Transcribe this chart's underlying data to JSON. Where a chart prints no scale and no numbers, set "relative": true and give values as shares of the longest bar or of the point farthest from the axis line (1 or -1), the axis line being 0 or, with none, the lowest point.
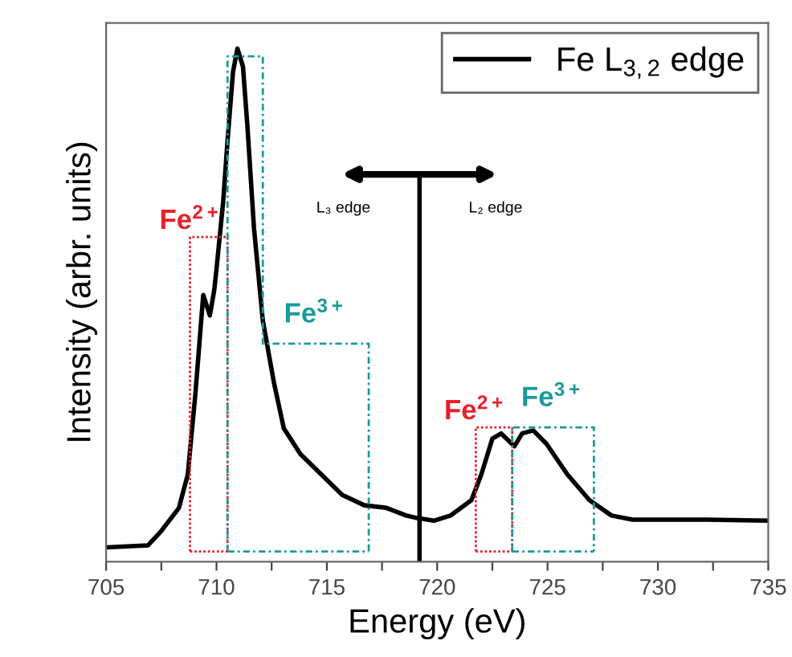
{
  "chart_data": {
    "type": "line",
    "relative": true,
    "xlabel": "Energy (eV)",
    "ylabel": "Intensity (arbr. units)",
    "xlim": [
      705,
      735
    ],
    "xticks": [
      705,
      {
        "value": 707.5,
        "label": null
      },
      710,
      {
        "value": 712.5,
        "label": null
      },
      715,
      {
        "value": 717.5,
        "label": null
      },
      720,
      {
        "value": 722.5,
        "label": null
      },
      725,
      {
        "value": 727.5,
        "label": null
      },
      730,
      {
        "value": 732.5,
        "label": null
      },
      735
    ],
    "grid": false,
    "legend": "top right",
    "line_style": "solid",
    "marker": "none",
    "series": [
      {
        "name": "Fe L$_{3,2}$ edge",
        "color": "#000000",
        "x": [
          705.05,
          706.9,
          707.5,
          708.3,
          708.7,
          709.05,
          709.4,
          709.7,
          709.9,
          710.0,
          710.3,
          710.5,
          710.75,
          710.95,
          711.2,
          711.4,
          711.7,
          712.1,
          712.6,
          713.05,
          713.8,
          714.75,
          715.7,
          716.7,
          717.7,
          718.6,
          719.1,
          719.85,
          720.6,
          721.55,
          722.0,
          722.5,
          722.9,
          723.5,
          723.85,
          724.35,
          724.95,
          725.9,
          726.9,
          727.9,
          728.85,
          732.2,
          735.0
        ],
        "values": [
          0.028,
          0.032,
          0.06,
          0.105,
          0.17,
          0.33,
          0.52,
          0.48,
          0.53,
          0.57,
          0.7,
          0.82,
          0.955,
          1.0,
          0.965,
          0.85,
          0.65,
          0.47,
          0.35,
          0.26,
          0.21,
          0.17,
          0.13,
          0.11,
          0.105,
          0.09,
          0.085,
          0.08,
          0.09,
          0.12,
          0.17,
          0.24,
          0.25,
          0.225,
          0.25,
          0.256,
          0.23,
          0.17,
          0.12,
          0.09,
          0.082,
          0.082,
          0.08
        ]
      },
      {
        "name": "Fe$^{2+}$",
        "color": "#e8202a",
        "line_style": "dotted",
        "x": [
          708.8,
          708.8,
          710.5,
          710.5
        ],
        "values": [
          0.02,
          0.633,
          0.633,
          0.02
        ]
      },
      {
        "name": "Fe$^{3+}$",
        "color": "#1a9a9a",
        "line_style": "dashed",
        "x": [
          710.5,
          710.5,
          712.1,
          712.1,
          716.9,
          716.9
        ],
        "values": [
          0.02,
          0.985,
          0.985,
          0.425,
          0.425,
          0.02
        ]
      },
      {
        "name": "Fe$^{2+}$",
        "color": "#e8202a",
        "line_style": "dotted",
        "x": [
          721.75,
          721.75,
          723.4,
          723.4
        ],
        "values": [
          0.02,
          0.262,
          0.262,
          0.02
        ]
      },
      {
        "name": "Fe$^{3+}$",
        "color": "#1a9a9a",
        "line_style": "dashed",
        "x": [
          723.4,
          723.4,
          727.1,
          727.1
        ],
        "values": [
          0.02,
          0.262,
          0.262,
          0.02
        ]
      },
      {
        "color": "#e8202a",
        "line_style": "dotted",
        "x": [
          708.8,
          710.5,
          716.0,
          721.75,
          723.4
        ],
        "values": [
          0.02,
          0.02,
          null,
          0.02,
          0.02
        ]
      },
      {
        "color": "#1a9a9a",
        "line_style": "dashed",
        "x": [
          710.5,
          716.9,
          720.0,
          723.4,
          727.1
        ],
        "values": [
          0.02,
          0.02,
          null,
          0.02,
          0.02
        ]
      },
      {
        "color": "#000000",
        "x": [
          719.2,
          719.2
        ],
        "values": [
          0,
          0.755
        ]
      }
    ],
    "annotations": [
      "L₃ edge",
      "L₂ edge"
    ]
  }
}
